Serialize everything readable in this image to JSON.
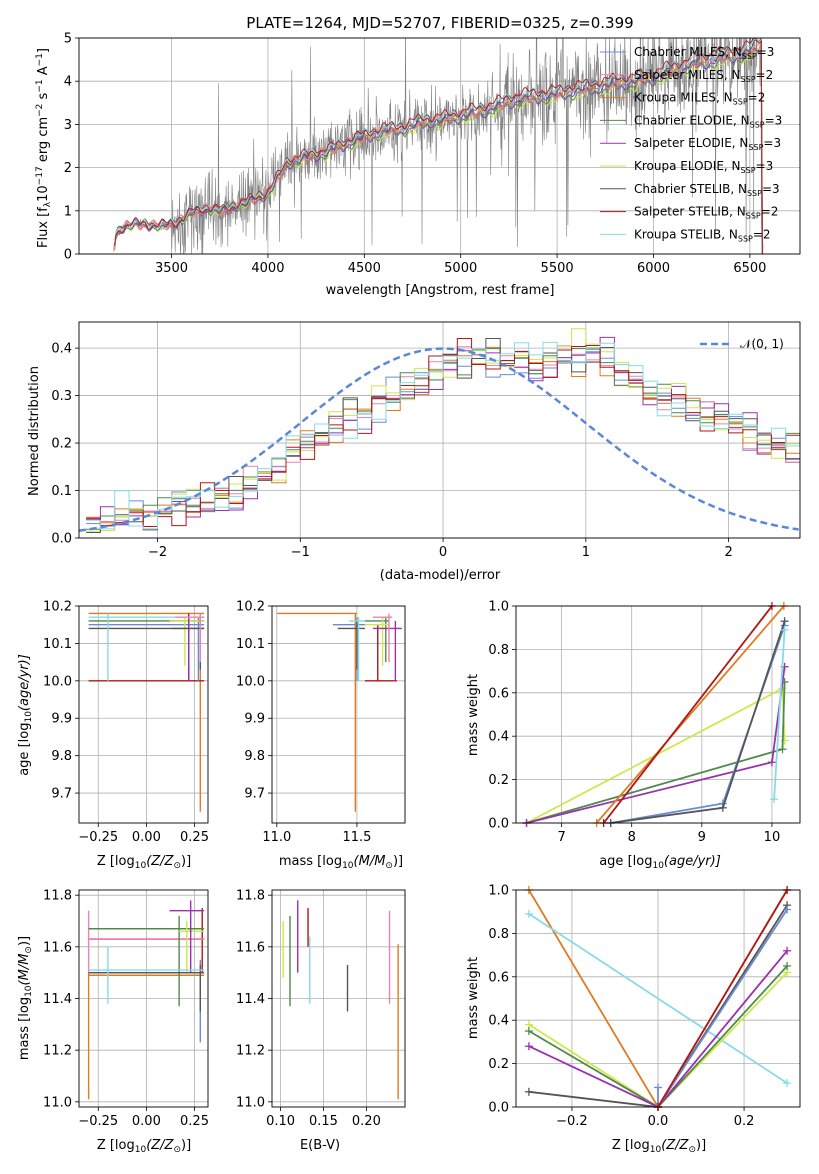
{
  "colors": {
    "chabrier_miles": "#6a8bd6",
    "salpeter_miles": "#ee82b0",
    "kroupa_miles": "#e07b22",
    "chabrier_elodie": "#4f8a4f",
    "salpeter_elodie": "#9b30b0",
    "kroupa_elodie": "#cde848",
    "chabrier_stelib": "#555555",
    "salpeter_stelib": "#b01818",
    "kroupa_stelib": "#86dbe6",
    "spectrum": "#808080",
    "gauss": "#5a87d6"
  },
  "chart_data": [
    {
      "id": "spectrum",
      "type": "line",
      "title": "PLATE=1264, MJD=52707, FIBERID=0325, z=0.399",
      "xlabel": "wavelength [Angstrom, rest frame]",
      "ylabel_pre": "Flux [f",
      "ylabel_sub": "λ",
      "ylabel_post": "10",
      "ylabel_sup1": "−17",
      "ylabel_tail": " erg cm",
      "ylabel_sup2": "−2",
      "ylabel_tail2": " s",
      "ylabel_sup3": "−1",
      "ylabel_tail3": " A",
      "ylabel_sup4": "−1",
      "ylabel_end": "]",
      "xlim": [
        3020,
        6760
      ],
      "ylim": [
        0,
        5
      ],
      "xticks": [
        3500,
        4000,
        4500,
        5000,
        5500,
        6000,
        6500
      ],
      "yticks": [
        0,
        1,
        2,
        3,
        4,
        5
      ],
      "model_anchors": [
        [
          3200,
          0
        ],
        [
          3210,
          0.4
        ],
        [
          3240,
          0.6
        ],
        [
          3300,
          0.7
        ],
        [
          3400,
          0.66
        ],
        [
          3480,
          0.68
        ],
        [
          3520,
          0.7
        ],
        [
          3600,
          0.95
        ],
        [
          3700,
          1.05
        ],
        [
          3780,
          1.0
        ],
        [
          3850,
          1.15
        ],
        [
          3950,
          1.3
        ],
        [
          4000,
          1.4
        ],
        [
          4100,
          2.1
        ],
        [
          4200,
          2.25
        ],
        [
          4300,
          2.35
        ],
        [
          4400,
          2.55
        ],
        [
          4500,
          2.7
        ],
        [
          4600,
          2.85
        ],
        [
          4700,
          2.9
        ],
        [
          4800,
          3.05
        ],
        [
          4900,
          3.1
        ],
        [
          5000,
          3.2
        ],
        [
          5100,
          3.3
        ],
        [
          5200,
          3.45
        ],
        [
          5300,
          3.6
        ],
        [
          5400,
          3.65
        ],
        [
          5500,
          3.7
        ],
        [
          5600,
          3.8
        ],
        [
          5700,
          3.85
        ],
        [
          5800,
          3.95
        ],
        [
          5900,
          4.0
        ],
        [
          6000,
          4.1
        ],
        [
          6100,
          4.25
        ],
        [
          6200,
          4.4
        ],
        [
          6300,
          4.5
        ],
        [
          6400,
          4.6
        ],
        [
          6500,
          4.7
        ],
        [
          6560,
          4.85
        ]
      ],
      "legend": [
        {
          "key": "chabrier_miles",
          "label": "Chabrier MILES, N",
          "sub": "SSP",
          "tail": "=3"
        },
        {
          "key": "salpeter_miles",
          "label": "Salpeter MILES, N",
          "sub": "SSP",
          "tail": "=2"
        },
        {
          "key": "kroupa_miles",
          "label": "Kroupa MILES, N",
          "sub": "SSP",
          "tail": "=2"
        },
        {
          "key": "chabrier_elodie",
          "label": "Chabrier ELODIE, N",
          "sub": "SSP",
          "tail": "=3"
        },
        {
          "key": "salpeter_elodie",
          "label": "Salpeter ELODIE, N",
          "sub": "SSP",
          "tail": "=3"
        },
        {
          "key": "kroupa_elodie",
          "label": "Kroupa ELODIE, N",
          "sub": "SSP",
          "tail": "=3"
        },
        {
          "key": "chabrier_stelib",
          "label": "Chabrier STELIB, N",
          "sub": "SSP",
          "tail": "=3"
        },
        {
          "key": "salpeter_stelib",
          "label": "Salpeter STELIB, N",
          "sub": "SSP",
          "tail": "=2"
        },
        {
          "key": "kroupa_stelib",
          "label": "Kroupa STELIB, N",
          "sub": "SSP",
          "tail": "=2"
        }
      ]
    },
    {
      "id": "residuals",
      "type": "histogram",
      "xlabel": "(data-model)/error",
      "ylabel": "Normed distribution",
      "xlim": [
        -2.55,
        2.5
      ],
      "ylim": [
        0,
        0.455
      ],
      "xticks": [
        -2,
        -1,
        0,
        1,
        2
      ],
      "yticks": [
        0.0,
        0.1,
        0.2,
        0.3,
        0.4
      ],
      "legend_label": "𝒩(0, 1)",
      "bin_width": 0.1,
      "bin_start": -2.5,
      "envelope": [
        0.03,
        0.03,
        0.05,
        0.06,
        0.05,
        0.06,
        0.07,
        0.07,
        0.08,
        0.09,
        0.1,
        0.11,
        0.13,
        0.15,
        0.18,
        0.2,
        0.22,
        0.23,
        0.25,
        0.26,
        0.27,
        0.3,
        0.32,
        0.33,
        0.35,
        0.37,
        0.37,
        0.38,
        0.38,
        0.37,
        0.37,
        0.36,
        0.37,
        0.38,
        0.38,
        0.38,
        0.37,
        0.35,
        0.33,
        0.3,
        0.29,
        0.28,
        0.27,
        0.26,
        0.25,
        0.24,
        0.22,
        0.21,
        0.2,
        0.18,
        0.16,
        0.15,
        0.13,
        0.12,
        0.11,
        0.1,
        0.09,
        0.08,
        0.07,
        0.07,
        0.06,
        0.06,
        0.05,
        0.05,
        0.06,
        0.06,
        0.05,
        0.05,
        0.05,
        0.05
      ],
      "gauss": {
        "mu": 0,
        "sigma": 1
      }
    },
    {
      "id": "age_vs_Z",
      "type": "errorbar",
      "xlabel_pre": "Z [log",
      "xlabel_sub": "10",
      "xlabel_post": "(Z/Z",
      "xlabel_sub2": "⊙",
      "xlabel_end": ")]",
      "ylabel_pre": "age  [log",
      "ylabel_sub": "10",
      "ylabel_post": "(age/yr)]",
      "xlim": [
        -0.35,
        0.32
      ],
      "ylim": [
        9.62,
        10.2
      ],
      "xticks": [
        -0.25,
        0.0,
        0.25
      ],
      "xticklabels": [
        "−0.25",
        "0.00",
        "0.25"
      ],
      "yticks": [
        9.7,
        9.8,
        9.9,
        10.0,
        10.1,
        10.2
      ],
      "yticklabels": [
        "9.7",
        "9.8",
        "9.9",
        "10.0",
        "10.1",
        "10.2"
      ],
      "points": [
        {
          "key": "kroupa_miles",
          "x": 0.28,
          "xlo": -0.3,
          "xhi": 0.3,
          "y": 10.18,
          "ylo": 9.65,
          "yhi": 10.18
        },
        {
          "key": "salpeter_stelib",
          "x": 0.22,
          "xlo": -0.3,
          "xhi": 0.3,
          "y": 10.0,
          "ylo": 10.0,
          "yhi": 10.18
        },
        {
          "key": "chabrier_miles",
          "x": 0.27,
          "xlo": -0.3,
          "xhi": 0.3,
          "y": 10.15,
          "ylo": 10.0,
          "yhi": 10.17
        },
        {
          "key": "chabrier_elodie",
          "x": 0.22,
          "xlo": -0.3,
          "xhi": 0.3,
          "y": 10.16,
          "ylo": 10.05,
          "yhi": 10.17
        },
        {
          "key": "kroupa_elodie",
          "x": 0.2,
          "xlo": 0.12,
          "xhi": 0.3,
          "y": 10.16,
          "ylo": 10.04,
          "yhi": 10.17
        },
        {
          "key": "salpeter_elodie",
          "x": 0.22,
          "xlo": 0.13,
          "xhi": 0.3,
          "y": 10.14,
          "ylo": 10.0,
          "yhi": 10.17
        },
        {
          "key": "chabrier_stelib",
          "x": 0.28,
          "xlo": -0.3,
          "xhi": 0.3,
          "y": 10.14,
          "ylo": 10.03,
          "yhi": 10.17
        },
        {
          "key": "kroupa_stelib",
          "x": -0.2,
          "xlo": -0.3,
          "xhi": 0.3,
          "y": 10.17,
          "ylo": 10.0,
          "yhi": 10.18
        },
        {
          "key": "salpeter_miles",
          "x": 0.28,
          "xlo": 0.15,
          "xhi": 0.3,
          "y": 10.17,
          "ylo": 10.05,
          "yhi": 10.18
        }
      ]
    },
    {
      "id": "age_vs_mass",
      "type": "errorbar",
      "xlabel_pre": "mass [log",
      "xlabel_sub": "10",
      "xlabel_post": "(M/M",
      "xlabel_sub2": "⊙",
      "xlabel_end": ")]",
      "xlim": [
        10.97,
        11.8
      ],
      "ylim": [
        9.62,
        10.2
      ],
      "xticks": [
        11.0,
        11.5
      ],
      "xticklabels": [
        "11.0",
        "11.5"
      ],
      "yticks": [
        9.7,
        9.8,
        9.9,
        10.0,
        10.1,
        10.2
      ],
      "yticklabels": [
        "9.7",
        "9.8",
        "9.9",
        "10.0",
        "10.1",
        "10.2"
      ],
      "points": [
        {
          "key": "kroupa_miles",
          "x": 11.49,
          "xlo": 11.0,
          "xhi": 11.5,
          "y": 10.18,
          "ylo": 9.65,
          "yhi": 10.18
        },
        {
          "key": "salpeter_stelib",
          "x": 11.63,
          "xlo": 11.55,
          "xhi": 11.75,
          "y": 10.0,
          "ylo": 10.0,
          "yhi": 10.15
        },
        {
          "key": "chabrier_miles",
          "x": 11.5,
          "xlo": 11.35,
          "xhi": 11.55,
          "y": 10.15,
          "ylo": 10.0,
          "yhi": 10.17
        },
        {
          "key": "chabrier_elodie",
          "x": 11.68,
          "xlo": 11.55,
          "xhi": 11.7,
          "y": 10.16,
          "ylo": 10.05,
          "yhi": 10.17
        },
        {
          "key": "kroupa_elodie",
          "x": 11.66,
          "xlo": 11.55,
          "xhi": 11.7,
          "y": 10.15,
          "ylo": 10.04,
          "yhi": 10.17
        },
        {
          "key": "salpeter_elodie",
          "x": 11.74,
          "xlo": 11.6,
          "xhi": 11.78,
          "y": 10.14,
          "ylo": 10.0,
          "yhi": 10.16
        },
        {
          "key": "chabrier_stelib",
          "x": 11.5,
          "xlo": 11.38,
          "xhi": 11.55,
          "y": 10.14,
          "ylo": 10.03,
          "yhi": 10.16
        },
        {
          "key": "kroupa_stelib",
          "x": 11.51,
          "xlo": 11.45,
          "xhi": 11.55,
          "y": 10.16,
          "ylo": 10.0,
          "yhi": 10.17
        },
        {
          "key": "salpeter_miles",
          "x": 11.7,
          "xlo": 11.6,
          "xhi": 11.72,
          "y": 10.17,
          "ylo": 10.05,
          "yhi": 10.18
        }
      ]
    },
    {
      "id": "weight_vs_age",
      "type": "line",
      "xlabel_pre": "age  [log",
      "xlabel_sub": "10",
      "xlabel_post": "(age/yr)]",
      "ylabel": "mass weight",
      "xlim": [
        6.35,
        10.4
      ],
      "ylim": [
        0,
        1
      ],
      "xticks": [
        7,
        8,
        9,
        10
      ],
      "yticks": [
        0.0,
        0.2,
        0.4,
        0.6,
        0.8,
        1.0
      ],
      "yticklabels": [
        "0.0",
        "0.2",
        "0.4",
        "0.6",
        "0.8",
        "1.0"
      ],
      "series": [
        {
          "key": "kroupa_elodie",
          "x": [
            6.5,
            10.15,
            10.18
          ],
          "y": [
            0.0,
            0.62,
            0.38
          ]
        },
        {
          "key": "chabrier_elodie",
          "x": [
            6.5,
            10.15,
            10.18
          ],
          "y": [
            0.0,
            0.34,
            0.65
          ]
        },
        {
          "key": "salpeter_elodie",
          "x": [
            6.5,
            10.0,
            10.18
          ],
          "y": [
            0.0,
            0.28,
            0.72
          ]
        },
        {
          "key": "kroupa_miles",
          "x": [
            7.5,
            10.17
          ],
          "y": [
            0.0,
            1.0
          ]
        },
        {
          "key": "salpeter_stelib",
          "x": [
            7.6,
            10.0
          ],
          "y": [
            0.0,
            1.0
          ]
        },
        {
          "key": "chabrier_miles",
          "x": [
            7.7,
            9.3,
            10.18
          ],
          "y": [
            0.0,
            0.09,
            0.91
          ]
        },
        {
          "key": "chabrier_stelib",
          "x": [
            7.7,
            9.3,
            10.18
          ],
          "y": [
            0.0,
            0.07,
            0.93
          ]
        },
        {
          "key": "kroupa_stelib",
          "x": [
            10.03,
            10.18
          ],
          "y": [
            0.11,
            0.89
          ]
        }
      ]
    },
    {
      "id": "mass_vs_Z",
      "type": "errorbar",
      "xlabel_pre": "Z [log",
      "xlabel_sub": "10",
      "xlabel_post": "(Z/Z",
      "xlabel_sub2": "⊙",
      "xlabel_end": ")]",
      "ylabel_pre": "mass [log",
      "ylabel_sub": "10",
      "ylabel_post": "(M/M",
      "ylabel_sub2": "⊙",
      "ylabel_end": ")]",
      "xlim": [
        -0.35,
        0.32
      ],
      "ylim": [
        10.98,
        11.82
      ],
      "xticks": [
        -0.25,
        0.0,
        0.25
      ],
      "xticklabels": [
        "−0.25",
        "0.00",
        "0.25"
      ],
      "yticks": [
        11.0,
        11.2,
        11.4,
        11.6,
        11.8
      ],
      "yticklabels": [
        "11.0",
        "11.2",
        "11.4",
        "11.6",
        "11.8"
      ],
      "points": [
        {
          "key": "kroupa_miles",
          "x": -0.3,
          "xlo": -0.3,
          "xhi": 0.3,
          "y": 11.49,
          "ylo": 11.01,
          "yhi": 11.5
        },
        {
          "key": "salpeter_stelib",
          "x": 0.29,
          "xlo": -0.3,
          "xhi": 0.3,
          "y": 11.63,
          "ylo": 11.5,
          "yhi": 11.75
        },
        {
          "key": "salpeter_miles",
          "x": -0.3,
          "xlo": -0.3,
          "xhi": 0.3,
          "y": 11.63,
          "ylo": 11.5,
          "yhi": 11.74
        },
        {
          "key": "chabrier_miles",
          "x": 0.28,
          "xlo": -0.3,
          "xhi": 0.3,
          "y": 11.5,
          "ylo": 11.23,
          "yhi": 11.55
        },
        {
          "key": "chabrier_elodie",
          "x": 0.17,
          "xlo": -0.3,
          "xhi": 0.3,
          "y": 11.67,
          "ylo": 11.37,
          "yhi": 11.72
        },
        {
          "key": "kroupa_elodie",
          "x": 0.21,
          "xlo": 0.17,
          "xhi": 0.3,
          "y": 11.66,
          "ylo": 11.5,
          "yhi": 11.7
        },
        {
          "key": "salpeter_elodie",
          "x": 0.23,
          "xlo": 0.12,
          "xhi": 0.3,
          "y": 11.74,
          "ylo": 11.5,
          "yhi": 11.78
        },
        {
          "key": "chabrier_stelib",
          "x": 0.28,
          "xlo": -0.3,
          "xhi": 0.3,
          "y": 11.5,
          "ylo": 11.35,
          "yhi": 11.53
        },
        {
          "key": "kroupa_stelib",
          "x": -0.2,
          "xlo": -0.3,
          "xhi": 0.3,
          "y": 11.51,
          "ylo": 11.38,
          "yhi": 11.6
        }
      ]
    },
    {
      "id": "mass_vs_ebv",
      "type": "errorbar",
      "xlabel": "E(B-V)",
      "xlim": [
        0.09,
        0.245
      ],
      "ylim": [
        10.98,
        11.82
      ],
      "xticks": [
        0.1,
        0.15,
        0.2
      ],
      "xticklabels": [
        "0.10",
        "0.15",
        "0.20"
      ],
      "yticks": [
        11.0,
        11.2,
        11.4,
        11.6,
        11.8
      ],
      "yticklabels": [
        "11.0",
        "11.2",
        "11.4",
        "11.6",
        "11.8"
      ],
      "points": [
        {
          "key": "kroupa_elodie",
          "x": 0.103,
          "y": 11.6,
          "ylo": 11.48,
          "yhi": 11.7
        },
        {
          "key": "chabrier_elodie",
          "x": 0.111,
          "y": 11.6,
          "ylo": 11.37,
          "yhi": 11.72
        },
        {
          "key": "salpeter_elodie",
          "x": 0.12,
          "y": 11.66,
          "ylo": 11.5,
          "yhi": 11.78
        },
        {
          "key": "salpeter_stelib",
          "x": 0.132,
          "y": 11.66,
          "ylo": 11.6,
          "yhi": 11.75
        },
        {
          "key": "kroupa_stelib",
          "x": 0.134,
          "y": 11.5,
          "ylo": 11.38,
          "yhi": 11.64
        },
        {
          "key": "chabrier_stelib",
          "x": 0.178,
          "y": 11.44,
          "ylo": 11.35,
          "yhi": 11.53
        },
        {
          "key": "salpeter_miles",
          "x": 0.227,
          "y": 11.55,
          "ylo": 11.38,
          "yhi": 11.74
        },
        {
          "key": "kroupa_miles",
          "x": 0.237,
          "y": 11.3,
          "ylo": 11.01,
          "yhi": 11.61
        }
      ]
    },
    {
      "id": "weight_vs_Z",
      "type": "line",
      "xlabel_pre": "Z [log",
      "xlabel_sub": "10",
      "xlabel_post": "(Z/Z",
      "xlabel_sub2": "⊙",
      "xlabel_end": ")]",
      "ylabel": "mass weight",
      "xlim": [
        -0.33,
        0.33
      ],
      "ylim": [
        0,
        1
      ],
      "xticks": [
        -0.2,
        0.0,
        0.2
      ],
      "xticklabels": [
        "−0.2",
        "0.0",
        "0.2"
      ],
      "yticks": [
        0.0,
        0.2,
        0.4,
        0.6,
        0.8,
        1.0
      ],
      "yticklabels": [
        "0.0",
        "0.2",
        "0.4",
        "0.6",
        "0.8",
        "1.0"
      ],
      "series": [
        {
          "key": "kroupa_miles",
          "x": [
            -0.3,
            0.0,
            0.3
          ],
          "y": [
            1.0,
            0.0,
            1.0
          ]
        },
        {
          "key": "kroupa_stelib",
          "x": [
            -0.3,
            0.3
          ],
          "y": [
            0.89,
            0.11
          ]
        },
        {
          "key": "kroupa_elodie",
          "x": [
            -0.3,
            0.0,
            0.3
          ],
          "y": [
            0.38,
            0.0,
            0.62
          ]
        },
        {
          "key": "chabrier_elodie",
          "x": [
            -0.3,
            0.0,
            0.3
          ],
          "y": [
            0.35,
            0.0,
            0.65
          ]
        },
        {
          "key": "salpeter_elodie",
          "x": [
            -0.3,
            0.0,
            0.3
          ],
          "y": [
            0.28,
            0.0,
            0.72
          ]
        },
        {
          "key": "chabrier_stelib",
          "x": [
            -0.3,
            0.0,
            0.3
          ],
          "y": [
            0.07,
            0.0,
            0.93
          ]
        },
        {
          "key": "chabrier_miles",
          "x": [
            0.0,
            0.0,
            0.3
          ],
          "y": [
            0.09,
            0.0,
            0.91
          ]
        },
        {
          "key": "salpeter_stelib",
          "x": [
            0.0,
            0.3
          ],
          "y": [
            0.0,
            1.0
          ]
        }
      ]
    }
  ]
}
